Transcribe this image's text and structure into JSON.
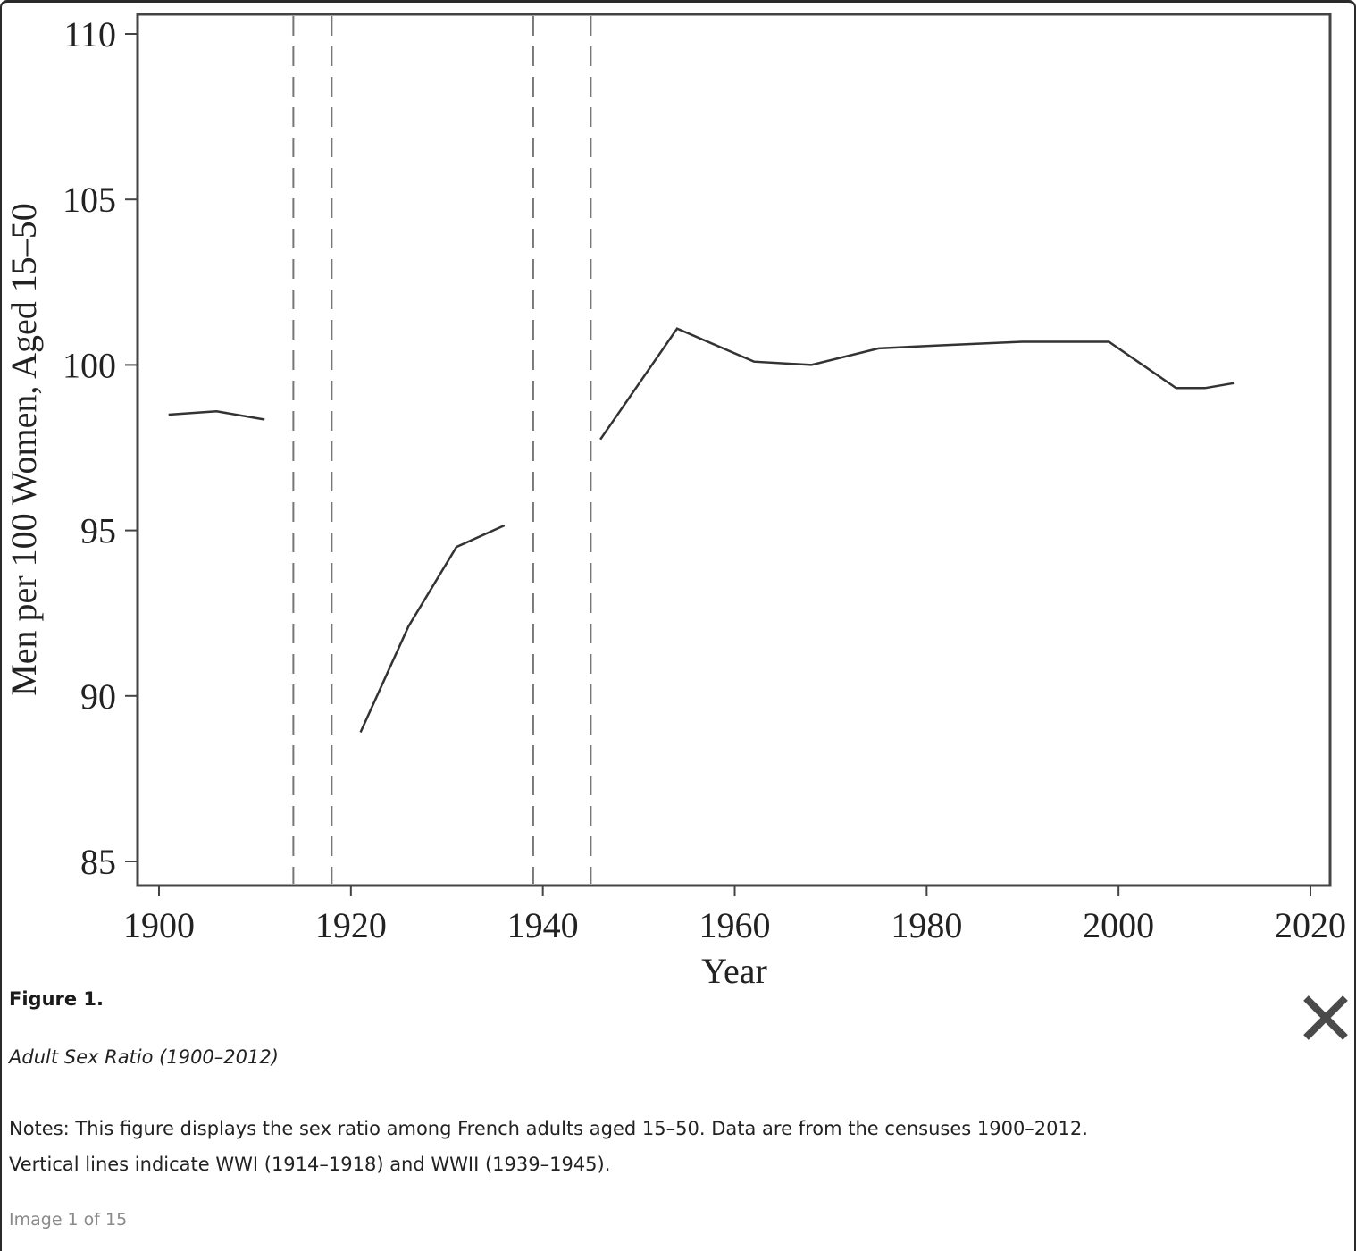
{
  "colors": {
    "line": "#333333",
    "axis": "#444444",
    "vline": "#777777",
    "close_icon": "#4a4a4a"
  },
  "caption": {
    "figure_label": "Figure 1.",
    "subtitle": "Adult Sex Ratio (1900–2012)",
    "notes_line1": "Notes: This figure displays the sex ratio among French adults aged 15–50. Data are from the censuses 1900–2012.",
    "notes_line2": "Vertical lines indicate WWI (1914–1918) and WWII (1939–1945)."
  },
  "viewer": {
    "counter": "Image 1 of 15",
    "close_icon": "close-icon"
  },
  "chart_data": {
    "type": "line",
    "title": "",
    "xlabel": "Year",
    "ylabel": "Men per 100 Women, Aged 15–50",
    "xlim": [
      1898,
      2022
    ],
    "ylim": [
      84.3,
      110.6
    ],
    "xticks": [
      1900,
      1920,
      1940,
      1960,
      1980,
      2000,
      2020
    ],
    "yticks": [
      85,
      90,
      95,
      100,
      105,
      110
    ],
    "grid": false,
    "legend": "none",
    "vlines": [
      1914,
      1918,
      1939,
      1945
    ],
    "segments": [
      {
        "name": "1901–1911",
        "x": [
          1901,
          1906,
          1911
        ],
        "y": [
          98.5,
          98.6,
          98.35
        ]
      },
      {
        "name": "1921–1936",
        "x": [
          1921,
          1926,
          1931,
          1936
        ],
        "y": [
          88.9,
          92.1,
          94.5,
          95.15
        ]
      },
      {
        "name": "1946–2012",
        "x": [
          1946,
          1954,
          1962,
          1968,
          1975,
          1982,
          1990,
          1999,
          2006,
          2009,
          2012
        ],
        "y": [
          97.75,
          101.1,
          100.1,
          100.0,
          100.5,
          100.6,
          100.7,
          100.7,
          99.3,
          99.3,
          99.45
        ]
      }
    ]
  }
}
